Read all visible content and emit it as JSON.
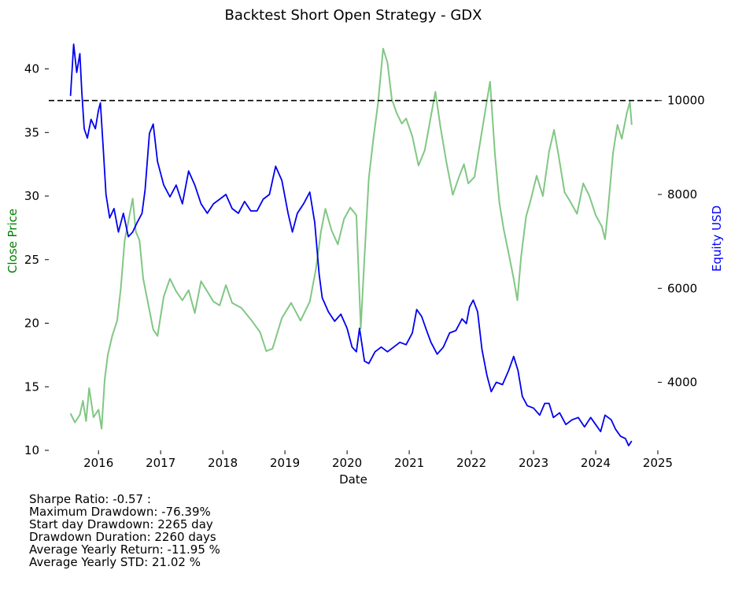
{
  "chart_data": {
    "type": "line",
    "title": "Backtest Short Open Strategy - GDX",
    "xlabel": "Date",
    "ylabel_left": "Close Price",
    "ylabel_right": "Equity USD",
    "x_ticks": [
      "2016",
      "2017",
      "2018",
      "2019",
      "2020",
      "2021",
      "2022",
      "2023",
      "2024",
      "2025"
    ],
    "y_left_ticks": [
      10,
      15,
      20,
      25,
      30,
      35,
      40
    ],
    "y_right_ticks": [
      4000,
      6000,
      8000,
      10000
    ],
    "xlim": [
      2015.2,
      2025.0
    ],
    "ylim_left": [
      10,
      42.2
    ],
    "ylim_right": [
      2550,
      11270
    ],
    "reference_line": {
      "axis": "right",
      "value": 10000,
      "style": "dashed",
      "color": "#000000"
    },
    "series": [
      {
        "axis": "left",
        "color": "#81c784",
        "points": [
          [
            2015.55,
            12.9
          ],
          [
            2015.62,
            12.2
          ],
          [
            2015.7,
            12.8
          ],
          [
            2015.75,
            13.9
          ],
          [
            2015.8,
            12.3
          ],
          [
            2015.85,
            14.9
          ],
          [
            2015.92,
            12.6
          ],
          [
            2016.0,
            13.2
          ],
          [
            2016.05,
            11.7
          ],
          [
            2016.1,
            15.6
          ],
          [
            2016.15,
            17.5
          ],
          [
            2016.22,
            19.0
          ],
          [
            2016.3,
            20.2
          ],
          [
            2016.36,
            22.8
          ],
          [
            2016.42,
            26.5
          ],
          [
            2016.48,
            28.0
          ],
          [
            2016.55,
            29.8
          ],
          [
            2016.6,
            27.2
          ],
          [
            2016.66,
            26.5
          ],
          [
            2016.72,
            23.5
          ],
          [
            2016.8,
            21.5
          ],
          [
            2016.88,
            19.5
          ],
          [
            2016.95,
            19.0
          ],
          [
            2017.05,
            22.1
          ],
          [
            2017.15,
            23.5
          ],
          [
            2017.25,
            22.5
          ],
          [
            2017.35,
            21.8
          ],
          [
            2017.45,
            22.6
          ],
          [
            2017.55,
            20.8
          ],
          [
            2017.65,
            23.3
          ],
          [
            2017.75,
            22.5
          ],
          [
            2017.85,
            21.7
          ],
          [
            2017.95,
            21.4
          ],
          [
            2018.05,
            23.0
          ],
          [
            2018.15,
            21.6
          ],
          [
            2018.3,
            21.2
          ],
          [
            2018.45,
            20.3
          ],
          [
            2018.6,
            19.3
          ],
          [
            2018.7,
            17.8
          ],
          [
            2018.8,
            18.0
          ],
          [
            2018.95,
            20.4
          ],
          [
            2019.1,
            21.6
          ],
          [
            2019.25,
            20.2
          ],
          [
            2019.4,
            21.7
          ],
          [
            2019.5,
            24.3
          ],
          [
            2019.58,
            27.2
          ],
          [
            2019.65,
            29.0
          ],
          [
            2019.75,
            27.3
          ],
          [
            2019.85,
            26.2
          ],
          [
            2019.95,
            28.2
          ],
          [
            2020.05,
            29.1
          ],
          [
            2020.15,
            28.5
          ],
          [
            2020.22,
            19.6
          ],
          [
            2020.28,
            25.2
          ],
          [
            2020.35,
            31.4
          ],
          [
            2020.42,
            34.4
          ],
          [
            2020.5,
            37.4
          ],
          [
            2020.58,
            41.6
          ],
          [
            2020.65,
            40.5
          ],
          [
            2020.72,
            37.6
          ],
          [
            2020.8,
            36.5
          ],
          [
            2020.88,
            35.7
          ],
          [
            2020.95,
            36.1
          ],
          [
            2021.05,
            34.7
          ],
          [
            2021.15,
            32.4
          ],
          [
            2021.25,
            33.6
          ],
          [
            2021.35,
            36.3
          ],
          [
            2021.42,
            38.2
          ],
          [
            2021.5,
            35.5
          ],
          [
            2021.6,
            32.6
          ],
          [
            2021.7,
            30.1
          ],
          [
            2021.8,
            31.5
          ],
          [
            2021.88,
            32.5
          ],
          [
            2021.95,
            31.0
          ],
          [
            2022.05,
            31.5
          ],
          [
            2022.15,
            34.5
          ],
          [
            2022.25,
            37.5
          ],
          [
            2022.3,
            39.0
          ],
          [
            2022.38,
            33.2
          ],
          [
            2022.45,
            29.5
          ],
          [
            2022.52,
            27.4
          ],
          [
            2022.6,
            25.5
          ],
          [
            2022.68,
            23.5
          ],
          [
            2022.74,
            21.8
          ],
          [
            2022.8,
            25.2
          ],
          [
            2022.88,
            28.4
          ],
          [
            2022.95,
            29.6
          ],
          [
            2023.05,
            31.6
          ],
          [
            2023.15,
            30.0
          ],
          [
            2023.25,
            33.5
          ],
          [
            2023.33,
            35.2
          ],
          [
            2023.4,
            33.3
          ],
          [
            2023.5,
            30.3
          ],
          [
            2023.6,
            29.5
          ],
          [
            2023.7,
            28.6
          ],
          [
            2023.8,
            31.0
          ],
          [
            2023.9,
            30.0
          ],
          [
            2024.0,
            28.5
          ],
          [
            2024.1,
            27.6
          ],
          [
            2024.15,
            26.6
          ],
          [
            2024.2,
            29.0
          ],
          [
            2024.28,
            33.4
          ],
          [
            2024.35,
            35.6
          ],
          [
            2024.42,
            34.5
          ],
          [
            2024.5,
            36.5
          ],
          [
            2024.55,
            37.4
          ],
          [
            2024.58,
            35.6
          ]
        ]
      },
      {
        "axis": "right",
        "color": "#0000ee",
        "points": [
          [
            2015.55,
            10100
          ],
          [
            2015.6,
            11200
          ],
          [
            2015.65,
            10600
          ],
          [
            2015.7,
            11000
          ],
          [
            2015.73,
            10200
          ],
          [
            2015.77,
            9400
          ],
          [
            2015.82,
            9200
          ],
          [
            2015.88,
            9600
          ],
          [
            2015.95,
            9400
          ],
          [
            2016.0,
            9800
          ],
          [
            2016.03,
            9950
          ],
          [
            2016.08,
            8900
          ],
          [
            2016.12,
            8000
          ],
          [
            2016.18,
            7500
          ],
          [
            2016.25,
            7700
          ],
          [
            2016.32,
            7200
          ],
          [
            2016.4,
            7600
          ],
          [
            2016.48,
            7100
          ],
          [
            2016.55,
            7200
          ],
          [
            2016.62,
            7400
          ],
          [
            2016.7,
            7600
          ],
          [
            2016.75,
            8100
          ],
          [
            2016.82,
            9300
          ],
          [
            2016.88,
            9500
          ],
          [
            2016.95,
            8700
          ],
          [
            2017.05,
            8200
          ],
          [
            2017.15,
            7950
          ],
          [
            2017.25,
            8200
          ],
          [
            2017.35,
            7800
          ],
          [
            2017.45,
            8500
          ],
          [
            2017.55,
            8200
          ],
          [
            2017.65,
            7800
          ],
          [
            2017.75,
            7600
          ],
          [
            2017.85,
            7800
          ],
          [
            2017.95,
            7900
          ],
          [
            2018.05,
            8000
          ],
          [
            2018.15,
            7700
          ],
          [
            2018.25,
            7600
          ],
          [
            2018.35,
            7850
          ],
          [
            2018.45,
            7650
          ],
          [
            2018.55,
            7650
          ],
          [
            2018.65,
            7900
          ],
          [
            2018.75,
            8000
          ],
          [
            2018.85,
            8600
          ],
          [
            2018.95,
            8300
          ],
          [
            2019.05,
            7600
          ],
          [
            2019.12,
            7200
          ],
          [
            2019.2,
            7600
          ],
          [
            2019.3,
            7800
          ],
          [
            2019.4,
            8050
          ],
          [
            2019.48,
            7400
          ],
          [
            2019.55,
            6300
          ],
          [
            2019.6,
            5800
          ],
          [
            2019.7,
            5500
          ],
          [
            2019.8,
            5300
          ],
          [
            2019.9,
            5450
          ],
          [
            2020.0,
            5150
          ],
          [
            2020.08,
            4750
          ],
          [
            2020.15,
            4650
          ],
          [
            2020.2,
            5150
          ],
          [
            2020.28,
            4450
          ],
          [
            2020.35,
            4400
          ],
          [
            2020.45,
            4650
          ],
          [
            2020.55,
            4750
          ],
          [
            2020.65,
            4650
          ],
          [
            2020.75,
            4750
          ],
          [
            2020.85,
            4850
          ],
          [
            2020.95,
            4800
          ],
          [
            2021.05,
            5050
          ],
          [
            2021.12,
            5550
          ],
          [
            2021.2,
            5400
          ],
          [
            2021.28,
            5100
          ],
          [
            2021.35,
            4850
          ],
          [
            2021.45,
            4600
          ],
          [
            2021.55,
            4750
          ],
          [
            2021.65,
            5050
          ],
          [
            2021.75,
            5100
          ],
          [
            2021.85,
            5350
          ],
          [
            2021.92,
            5250
          ],
          [
            2021.97,
            5600
          ],
          [
            2022.03,
            5750
          ],
          [
            2022.1,
            5500
          ],
          [
            2022.17,
            4700
          ],
          [
            2022.25,
            4150
          ],
          [
            2022.32,
            3800
          ],
          [
            2022.4,
            4000
          ],
          [
            2022.5,
            3950
          ],
          [
            2022.6,
            4250
          ],
          [
            2022.68,
            4550
          ],
          [
            2022.75,
            4250
          ],
          [
            2022.82,
            3700
          ],
          [
            2022.9,
            3500
          ],
          [
            2023.0,
            3450
          ],
          [
            2023.1,
            3300
          ],
          [
            2023.18,
            3550
          ],
          [
            2023.25,
            3550
          ],
          [
            2023.32,
            3250
          ],
          [
            2023.42,
            3350
          ],
          [
            2023.52,
            3100
          ],
          [
            2023.62,
            3200
          ],
          [
            2023.72,
            3250
          ],
          [
            2023.82,
            3050
          ],
          [
            2023.92,
            3250
          ],
          [
            2024.0,
            3100
          ],
          [
            2024.08,
            2950
          ],
          [
            2024.15,
            3300
          ],
          [
            2024.25,
            3200
          ],
          [
            2024.32,
            3000
          ],
          [
            2024.4,
            2850
          ],
          [
            2024.48,
            2800
          ],
          [
            2024.53,
            2650
          ],
          [
            2024.58,
            2750
          ]
        ]
      }
    ]
  },
  "stats": [
    "Sharpe Ratio: -0.57 :",
    "Maximum Drawdown: -76.39%",
    "Start day Drawdown: 2265 day",
    "Drawdown Duration: 2260 days",
    "Average Yearly Return: -11.95 %",
    "Average Yearly STD: 21.02 %"
  ]
}
